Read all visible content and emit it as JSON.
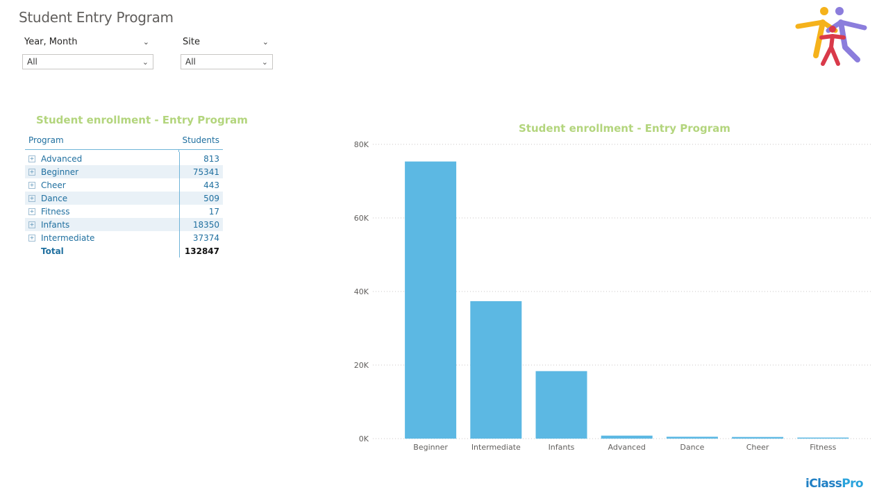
{
  "page": {
    "title": "Student Entry Program"
  },
  "filters": [
    {
      "label": "Year, Month",
      "value": "All"
    },
    {
      "label": "Site",
      "value": "All"
    }
  ],
  "icons": {
    "logo": "people-logo-icon",
    "expand": "plus-box-icon",
    "dropdown": "chevron-down-icon"
  },
  "colors": {
    "bar": "#5cb8e3",
    "title": "#b3d57d",
    "table_text": "#1f6f9f"
  },
  "table": {
    "title": "Student enrollment - Entry Program",
    "columns": [
      "Program",
      "Students"
    ],
    "rows": [
      {
        "program": "Advanced",
        "students": "813"
      },
      {
        "program": "Beginner",
        "students": "75341"
      },
      {
        "program": "Cheer",
        "students": "443"
      },
      {
        "program": "Dance",
        "students": "509"
      },
      {
        "program": "Fitness",
        "students": "17"
      },
      {
        "program": "Infants",
        "students": "18350"
      },
      {
        "program": "Intermediate",
        "students": "37374"
      }
    ],
    "total": {
      "label": "Total",
      "value": "132847"
    }
  },
  "chart_data": {
    "type": "bar",
    "title": "Student enrollment - Entry Program",
    "categories": [
      "Beginner",
      "Intermediate",
      "Infants",
      "Advanced",
      "Dance",
      "Cheer",
      "Fitness"
    ],
    "values": [
      75341,
      37374,
      18350,
      813,
      509,
      443,
      17
    ],
    "ylim": [
      0,
      80000
    ],
    "yticks": [
      "0K",
      "20K",
      "40K",
      "60K",
      "80K"
    ],
    "ytick_values": [
      0,
      20000,
      40000,
      60000,
      80000
    ],
    "grid": true,
    "xlabel": "",
    "ylabel": ""
  },
  "brand": {
    "name": "iClass",
    "suffix": "Pro"
  }
}
